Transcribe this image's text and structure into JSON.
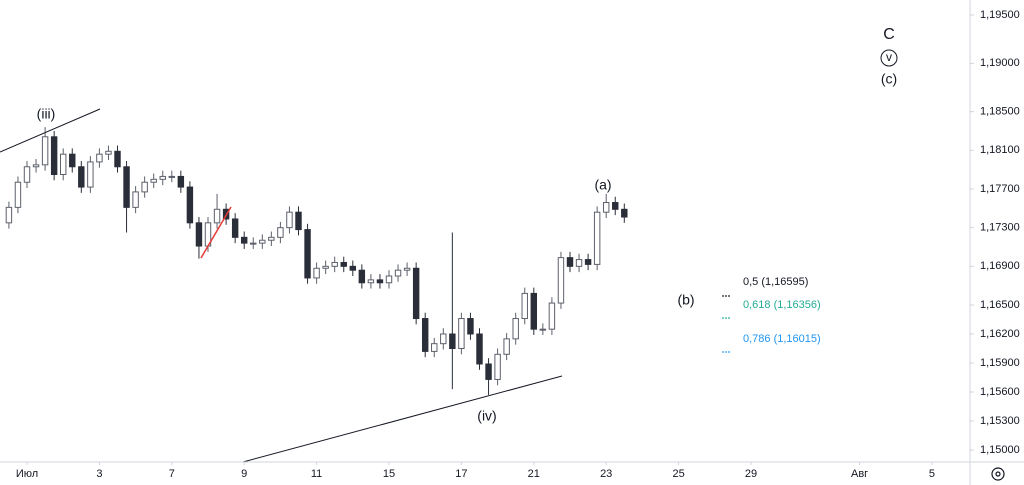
{
  "chart_data": {
    "type": "candlestick",
    "x": [
      -0.5,
      -0.25,
      0,
      0.25,
      0.5,
      0.75,
      1,
      1.25,
      1.5,
      1.75,
      2,
      2.25,
      2.5,
      2.75,
      3,
      3.25,
      3.5,
      3.75,
      4,
      4.25,
      4.5,
      4.75,
      5,
      5.25,
      5.5,
      5.75,
      6,
      6.25,
      6.5,
      6.75,
      7,
      7.25,
      7.5,
      7.75,
      8,
      8.25,
      8.5,
      8.75,
      9,
      9.25,
      9.5,
      9.75,
      10,
      10.25,
      10.5,
      10.75,
      11,
      11.25,
      11.5,
      11.75,
      12,
      12.25,
      12.5,
      12.75,
      13,
      13.25,
      13.5,
      13.75,
      14,
      14.25,
      14.5,
      14.75,
      15,
      15.25,
      15.5,
      15.75,
      16,
      16.25,
      16.5
    ],
    "open": [
      1.1735,
      1.1751,
      1.1777,
      1.1793,
      1.1795,
      1.1824,
      1.1785,
      1.1806,
      1.1793,
      1.1772,
      1.1798,
      1.1806,
      1.1809,
      1.1793,
      1.1751,
      1.1767,
      1.1777,
      1.178,
      1.1783,
      1.1783,
      1.1772,
      1.1735,
      1.1711,
      1.1735,
      1.1749,
      1.1739,
      1.172,
      1.1714,
      1.1714,
      1.1717,
      1.172,
      1.173,
      1.1746,
      1.1728,
      1.1678,
      1.1688,
      1.169,
      1.1694,
      1.169,
      1.1686,
      1.1673,
      1.1676,
      1.1673,
      1.168,
      1.1686,
      1.1688,
      1.1636,
      1.1602,
      1.161,
      1.162,
      1.1605,
      1.1636,
      1.162,
      1.1589,
      1.1573,
      1.1599,
      1.1615,
      1.1636,
      1.1662,
      1.1625,
      1.1625,
      1.1652,
      1.1699,
      1.169,
      1.1697,
      1.1692,
      1.1746,
      1.1756,
      1.1749
    ],
    "high": [
      1.1757,
      1.1783,
      1.1799,
      1.1801,
      1.1834,
      1.183,
      1.1812,
      1.1812,
      1.1799,
      1.1804,
      1.1812,
      1.1815,
      1.1815,
      1.1799,
      1.1773,
      1.1783,
      1.1786,
      1.1789,
      1.1789,
      1.1789,
      1.1778,
      1.1741,
      1.1741,
      1.1765,
      1.1755,
      1.1745,
      1.1726,
      1.172,
      1.1723,
      1.1726,
      1.1736,
      1.1752,
      1.1752,
      1.1734,
      1.1694,
      1.1696,
      1.17,
      1.17,
      1.1696,
      1.1692,
      1.1682,
      1.1682,
      1.1686,
      1.1692,
      1.1694,
      1.1694,
      1.1642,
      1.1616,
      1.1626,
      1.1725,
      1.1642,
      1.1642,
      1.1626,
      1.1595,
      1.1605,
      1.1621,
      1.1642,
      1.1668,
      1.1668,
      1.1631,
      1.1658,
      1.1705,
      1.1705,
      1.1703,
      1.1703,
      1.1752,
      1.1765,
      1.1762,
      1.1755
    ],
    "low": [
      1.1729,
      1.1745,
      1.1771,
      1.1787,
      1.1789,
      1.1779,
      1.1779,
      1.1787,
      1.1766,
      1.1766,
      1.1792,
      1.18,
      1.1787,
      1.1725,
      1.1745,
      1.1761,
      1.1771,
      1.1774,
      1.1777,
      1.1766,
      1.1729,
      1.1698,
      1.1705,
      1.1729,
      1.1733,
      1.1714,
      1.1708,
      1.1708,
      1.1708,
      1.1711,
      1.1714,
      1.1724,
      1.1722,
      1.1672,
      1.1672,
      1.1682,
      1.1684,
      1.1684,
      1.168,
      1.1667,
      1.1667,
      1.1667,
      1.1667,
      1.1674,
      1.168,
      1.163,
      1.1596,
      1.1596,
      1.1604,
      1.1563,
      1.1599,
      1.1614,
      1.1583,
      1.1557,
      1.1567,
      1.1593,
      1.1609,
      1.163,
      1.1619,
      1.1619,
      1.1619,
      1.1646,
      1.1684,
      1.1684,
      1.1686,
      1.1686,
      1.174,
      1.1743,
      1.1735
    ],
    "close": [
      1.1751,
      1.1777,
      1.1793,
      1.1795,
      1.1824,
      1.1785,
      1.1806,
      1.1793,
      1.1772,
      1.1798,
      1.1806,
      1.1809,
      1.1793,
      1.1751,
      1.1767,
      1.1777,
      1.178,
      1.1783,
      1.1783,
      1.1772,
      1.1735,
      1.1711,
      1.1735,
      1.1749,
      1.1739,
      1.172,
      1.1714,
      1.1714,
      1.1717,
      1.172,
      1.173,
      1.1746,
      1.1728,
      1.1678,
      1.1688,
      1.169,
      1.1694,
      1.169,
      1.1686,
      1.1673,
      1.1676,
      1.1673,
      1.168,
      1.1686,
      1.1688,
      1.1636,
      1.1602,
      1.161,
      1.162,
      1.1605,
      1.1636,
      1.162,
      1.1589,
      1.1573,
      1.1599,
      1.1615,
      1.1636,
      1.1662,
      1.1625,
      1.1625,
      1.1652,
      1.1699,
      1.169,
      1.1697,
      1.1692,
      1.1746,
      1.1756,
      1.1749,
      1.1741
    ],
    "up_color": "#5d606b",
    "down_color": "#2a2e39",
    "xlim": [
      -0.746,
      26.05
    ],
    "xticks": [
      {
        "value": 0,
        "label": "Июл"
      },
      {
        "value": 2,
        "label": "3"
      },
      {
        "value": 4,
        "label": "7"
      },
      {
        "value": 6,
        "label": "9"
      },
      {
        "value": 8,
        "label": "11"
      },
      {
        "value": 10,
        "label": "15"
      },
      {
        "value": 12,
        "label": "17"
      },
      {
        "value": 14,
        "label": "21"
      },
      {
        "value": 16,
        "label": "23"
      },
      {
        "value": 18,
        "label": "25"
      },
      {
        "value": 20,
        "label": "29"
      },
      {
        "value": 23,
        "label": "Авг"
      },
      {
        "value": 25,
        "label": "5"
      }
    ],
    "ylim": [
      1.14876,
      1.19655
    ],
    "yticks": [
      {
        "value": 1.195,
        "label": "1,19500"
      },
      {
        "value": 1.19,
        "label": "1,19000"
      },
      {
        "value": 1.185,
        "label": "1,18500"
      },
      {
        "value": 1.181,
        "label": "1,18100"
      },
      {
        "value": 1.177,
        "label": "1,17700"
      },
      {
        "value": 1.173,
        "label": "1,17300"
      },
      {
        "value": 1.169,
        "label": "1,16900"
      },
      {
        "value": 1.165,
        "label": "1,16500"
      },
      {
        "value": 1.162,
        "label": "1,16200"
      },
      {
        "value": 1.159,
        "label": "1,15900"
      },
      {
        "value": 1.156,
        "label": "1,15600"
      },
      {
        "value": 1.153,
        "label": "1,15300"
      },
      {
        "value": 1.15,
        "label": "1,15000"
      }
    ],
    "grid": false,
    "annotations": {
      "waves": [
        "(iii)",
        "(iv)",
        "(a)",
        "(b)",
        "C",
        "v",
        "(c)"
      ],
      "fib_levels": [
        "0,5 (1,16595)",
        "0,618 (1,16356)",
        "0,786 (1,16015)"
      ]
    }
  }
}
